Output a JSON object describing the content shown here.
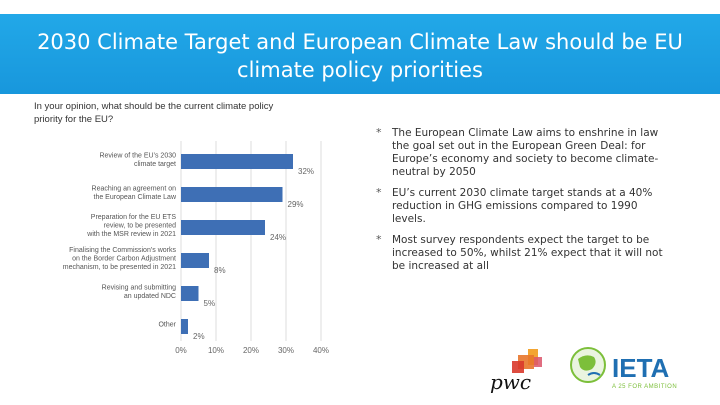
{
  "slide": {
    "title_line1": "2030 Climate Target and European Climate Law should be EU",
    "title_line2": "climate policy priorities",
    "question": "In your opinion, what should be the current climate policy priority for the EU?"
  },
  "bullets": [
    "The European Climate Law aims to enshrine in law the goal set out in the European Green Deal: for Europe’s economy and society to become climate-neutral by 2050",
    "EU’s current 2030 climate target stands at a 40% reduction in GHG emissions compared to 1990 levels.",
    "Most survey respondents expect the target to be increased to 50%, whilst 21% expect that it will not be increased at all"
  ],
  "logos": {
    "pwc_text": "pwc",
    "ieta_text": "IETA",
    "ieta_tagline": "A 25 FOR AMBITION"
  },
  "colors": {
    "banner": "#1a9fe0",
    "bar": "#3e6fb5",
    "grid": "#dddddd",
    "pwc_orange": "#e8762b",
    "ieta_green": "#7cbf3a",
    "ieta_blue": "#1f6fb2"
  },
  "chart_data": {
    "type": "bar",
    "orientation": "horizontal",
    "categories": [
      [
        "Review of the EU’s 2030",
        "climate target"
      ],
      [
        "Reaching an agreement on",
        "the European Climate Law"
      ],
      [
        "Preparation for the EU ETS",
        "review, to be presented",
        "with the MSR review in 2021"
      ],
      [
        "Finalising the Commission’s works",
        "on the Border Carbon Adjustment",
        "mechanism, to be presented in 2021"
      ],
      [
        "Revising and submitting",
        "an updated NDC"
      ],
      [
        "Other"
      ]
    ],
    "values": [
      32,
      29,
      24,
      8,
      5,
      2
    ],
    "value_labels": [
      "32%",
      "29%",
      "24%",
      "8%",
      "5%",
      "2%"
    ],
    "xticks": [
      "0%",
      "10%",
      "20%",
      "30%",
      "40%"
    ],
    "xlim": [
      0,
      40
    ],
    "title": "",
    "xlabel": "",
    "ylabel": ""
  }
}
